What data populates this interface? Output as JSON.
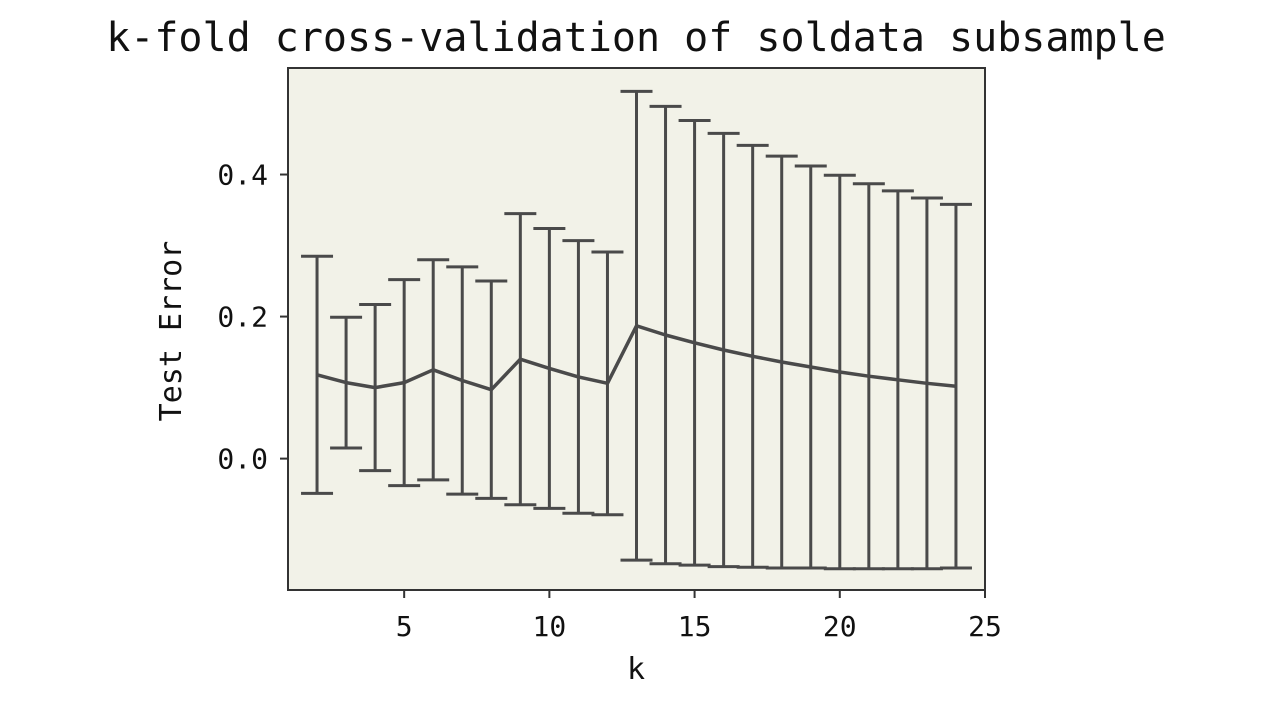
{
  "chart_data": {
    "type": "line",
    "title": "k-fold cross-validation of soldata subsample",
    "xlabel": "k",
    "ylabel": "Test Error",
    "xlim": [
      1,
      25
    ],
    "ylim": [
      -0.185,
      0.55
    ],
    "xticks": [
      5,
      10,
      15,
      20,
      25
    ],
    "yticks": [
      0.0,
      0.2,
      0.4
    ],
    "ytick_labels": [
      "0.0",
      "0.2",
      "0.4"
    ],
    "grid": false,
    "background": "#f2f2e8",
    "line_color": "#4a4a4a",
    "series": [
      {
        "x": [
          2,
          3,
          4,
          5,
          6,
          7,
          8,
          9,
          10,
          11,
          12,
          13,
          14,
          15,
          16,
          17,
          18,
          19,
          20,
          21,
          22,
          23,
          24
        ],
        "y": [
          0.118,
          0.107,
          0.1,
          0.107,
          0.125,
          0.11,
          0.097,
          0.14,
          0.127,
          0.115,
          0.106,
          0.187,
          0.174,
          0.163,
          0.153,
          0.144,
          0.136,
          0.129,
          0.122,
          0.116,
          0.111,
          0.106,
          0.102
        ],
        "error": [
          0.167,
          0.092,
          0.117,
          0.145,
          0.155,
          0.16,
          0.153,
          0.205,
          0.197,
          0.192,
          0.185,
          0.33,
          0.322,
          0.313,
          0.305,
          0.297,
          0.29,
          0.283,
          0.277,
          0.271,
          0.266,
          0.261,
          0.256
        ]
      }
    ]
  }
}
